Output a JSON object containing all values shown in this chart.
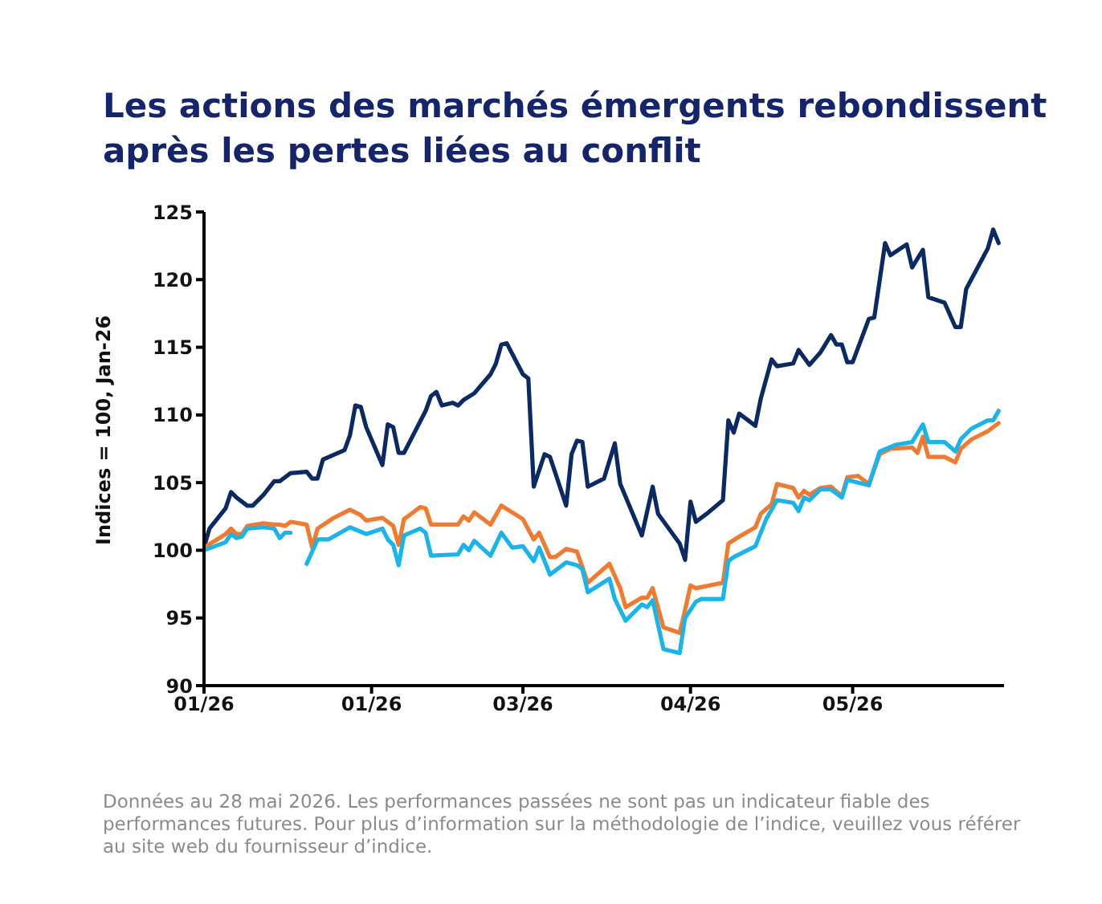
{
  "chart_data": {
    "type": "line",
    "title": "Les actions des marchés émergents rebondissent après les pertes liées au conflit",
    "ylabel": "Indices = 100, Jan-26",
    "xlim": [
      "2026-01-01",
      "2026-05-29"
    ],
    "xticks": [
      {
        "value": "2026-01-01",
        "label": "01/26"
      },
      {
        "value": "2026-02-01",
        "label": "01/26"
      },
      {
        "value": "2026-03-01",
        "label": "03/26"
      },
      {
        "value": "2026-04-01",
        "label": "04/26"
      },
      {
        "value": "2026-05-01",
        "label": "05/26"
      }
    ],
    "ylim": [
      90,
      125
    ],
    "yticks": [
      90,
      95,
      100,
      105,
      110,
      115,
      120,
      125
    ],
    "grid": false,
    "marker": "none",
    "line_style": "solid",
    "series": [
      {
        "color": "#0b2a63",
        "x": [
          "2026-01-01",
          "2026-01-02",
          "2026-01-05",
          "2026-01-06",
          "2026-01-07",
          "2026-01-09",
          "2026-01-10",
          "2026-01-12",
          "2026-01-14",
          "2026-01-15",
          "2026-01-17",
          "2026-01-20",
          "2026-01-21",
          "2026-01-22",
          "2026-01-23",
          "2026-01-27",
          "2026-01-28",
          "2026-01-29",
          "2026-01-30",
          "2026-01-31",
          "2026-02-03",
          "2026-02-04",
          "2026-02-05",
          "2026-02-06",
          "2026-02-07",
          "2026-02-11",
          "2026-02-12",
          "2026-02-13",
          "2026-02-14",
          "2026-02-16",
          "2026-02-17",
          "2026-02-18",
          "2026-02-20",
          "2026-02-23",
          "2026-02-24",
          "2026-02-25",
          "2026-02-26",
          "2026-03-01",
          "2026-03-02",
          "2026-03-03",
          "2026-03-05",
          "2026-03-06",
          "2026-03-09",
          "2026-03-10",
          "2026-03-11",
          "2026-03-12",
          "2026-03-13",
          "2026-03-16",
          "2026-03-18",
          "2026-03-19",
          "2026-03-23",
          "2026-03-25",
          "2026-03-26",
          "2026-03-30",
          "2026-03-31",
          "2026-04-01",
          "2026-04-02",
          "2026-04-04",
          "2026-04-07",
          "2026-04-08",
          "2026-04-09",
          "2026-04-10",
          "2026-04-13",
          "2026-04-14",
          "2026-04-16",
          "2026-04-17",
          "2026-04-20",
          "2026-04-21",
          "2026-04-23",
          "2026-04-25",
          "2026-04-27",
          "2026-04-28",
          "2026-04-29",
          "2026-04-30",
          "2026-05-01",
          "2026-05-04",
          "2026-05-05",
          "2026-05-07",
          "2026-05-08",
          "2026-05-11",
          "2026-05-12",
          "2026-05-14",
          "2026-05-15",
          "2026-05-18",
          "2026-05-20",
          "2026-05-21",
          "2026-05-22",
          "2026-05-26",
          "2026-05-27",
          "2026-05-28"
        ],
        "values": [
          100.2,
          101.6,
          103.1,
          104.3,
          103.9,
          103.3,
          103.3,
          104.1,
          105.1,
          105.1,
          105.7,
          105.8,
          105.3,
          105.3,
          106.7,
          107.4,
          108.5,
          110.7,
          110.6,
          109.1,
          106.3,
          109.3,
          109.1,
          107.2,
          107.2,
          110.3,
          111.4,
          111.7,
          110.7,
          110.9,
          110.7,
          111.1,
          111.6,
          113.0,
          113.8,
          115.2,
          115.3,
          113.0,
          112.7,
          104.7,
          107.1,
          106.9,
          103.3,
          107.1,
          108.1,
          108.0,
          104.7,
          105.3,
          107.9,
          104.9,
          101.1,
          104.7,
          102.7,
          100.5,
          99.3,
          103.6,
          102.1,
          102.7,
          103.7,
          109.6,
          108.7,
          110.1,
          109.2,
          111.2,
          114.1,
          113.6,
          113.8,
          114.8,
          113.7,
          114.6,
          115.9,
          115.2,
          115.2,
          113.9,
          113.9,
          117.1,
          117.2,
          122.7,
          121.8,
          122.6,
          120.9,
          122.2,
          118.7,
          118.3,
          116.5,
          116.5,
          119.3,
          122.3,
          123.7,
          122.7
        ]
      },
      {
        "color": "#f07a30",
        "x": [
          "2026-01-01",
          "2026-01-05",
          "2026-01-06",
          "2026-01-07",
          "2026-01-08",
          "2026-01-09",
          "2026-01-12",
          "2026-01-14",
          "2026-01-15",
          "2026-01-16",
          "2026-01-17",
          "2026-01-20",
          "2026-01-21",
          "2026-01-22",
          "2026-01-25",
          "2026-01-28",
          "2026-01-30",
          "2026-01-31",
          "2026-02-03",
          "2026-02-05",
          "2026-02-06",
          "2026-02-07",
          "2026-02-10",
          "2026-02-11",
          "2026-02-12",
          "2026-02-17",
          "2026-02-18",
          "2026-02-19",
          "2026-02-20",
          "2026-02-23",
          "2026-02-25",
          "2026-03-01",
          "2026-03-03",
          "2026-03-04",
          "2026-03-06",
          "2026-03-07",
          "2026-03-09",
          "2026-03-11",
          "2026-03-13",
          "2026-03-17",
          "2026-03-19",
          "2026-03-20",
          "2026-03-23",
          "2026-03-24",
          "2026-03-25",
          "2026-03-27",
          "2026-03-30",
          "2026-03-31",
          "2026-04-01",
          "2026-04-02",
          "2026-04-07",
          "2026-04-08",
          "2026-04-10",
          "2026-04-13",
          "2026-04-14",
          "2026-04-16",
          "2026-04-17",
          "2026-04-20",
          "2026-04-21",
          "2026-04-22",
          "2026-04-23",
          "2026-04-25",
          "2026-04-27",
          "2026-04-29",
          "2026-04-30",
          "2026-05-02",
          "2026-05-04",
          "2026-05-06",
          "2026-05-08",
          "2026-05-12",
          "2026-05-13",
          "2026-05-14",
          "2026-05-15",
          "2026-05-18",
          "2026-05-20",
          "2026-05-21",
          "2026-05-23",
          "2026-05-26",
          "2026-05-27",
          "2026-05-28"
        ],
        "values": [
          100.2,
          101.2,
          101.6,
          101.2,
          101.2,
          101.8,
          102.0,
          101.9,
          101.9,
          101.8,
          102.1,
          101.9,
          100.2,
          101.6,
          102.4,
          103.0,
          102.6,
          102.2,
          102.4,
          101.8,
          100.4,
          102.3,
          103.2,
          103.1,
          101.9,
          101.9,
          102.5,
          102.2,
          102.8,
          101.9,
          103.3,
          102.3,
          100.8,
          101.3,
          99.5,
          99.5,
          100.1,
          99.9,
          97.6,
          99.0,
          97.2,
          95.8,
          96.5,
          96.5,
          97.2,
          94.3,
          93.9,
          95.6,
          97.4,
          97.2,
          97.6,
          100.5,
          101.0,
          101.7,
          102.7,
          103.4,
          104.9,
          104.6,
          103.9,
          104.4,
          104.1,
          104.6,
          104.7,
          104.0,
          105.4,
          105.5,
          104.9,
          107.1,
          107.5,
          107.6,
          107.2,
          108.4,
          106.9,
          106.9,
          106.5,
          107.5,
          108.2,
          108.8,
          109.1,
          109.4
        ]
      },
      {
        "color": "#1ab3ea",
        "x": [
          "2026-01-01",
          "2026-01-03",
          "2026-01-05",
          "2026-01-06",
          "2026-01-07",
          "2026-01-08",
          "2026-01-09",
          "2026-01-12",
          "2026-01-14",
          "2026-01-15",
          "2026-01-16",
          "2026-01-17",
          "2026-01-18",
          "2026-01-20",
          "2026-01-22",
          "2026-01-24",
          "2026-01-28",
          "2026-01-31",
          "2026-02-03",
          "2026-02-04",
          "2026-02-05",
          "2026-02-06",
          "2026-02-07",
          "2026-02-10",
          "2026-02-11",
          "2026-02-12",
          "2026-02-17",
          "2026-02-18",
          "2026-02-19",
          "2026-02-20",
          "2026-02-23",
          "2026-02-25",
          "2026-02-27",
          "2026-03-01",
          "2026-03-03",
          "2026-03-04",
          "2026-03-06",
          "2026-03-09",
          "2026-03-11",
          "2026-03-12",
          "2026-03-13",
          "2026-03-17",
          "2026-03-18",
          "2026-03-20",
          "2026-03-23",
          "2026-03-24",
          "2026-03-25",
          "2026-03-27",
          "2026-03-30",
          "2026-03-31",
          "2026-04-02",
          "2026-04-03",
          "2026-04-07",
          "2026-04-08",
          "2026-04-09",
          "2026-04-13",
          "2026-04-15",
          "2026-04-17",
          "2026-04-20",
          "2026-04-21",
          "2026-04-22",
          "2026-04-23",
          "2026-04-25",
          "2026-04-27",
          "2026-04-29",
          "2026-04-30",
          "2026-05-04",
          "2026-05-06",
          "2026-05-09",
          "2026-05-12",
          "2026-05-14",
          "2026-05-15",
          "2026-05-18",
          "2026-05-20",
          "2026-05-21",
          "2026-05-23",
          "2026-05-26",
          "2026-05-27",
          "2026-05-28"
        ],
        "values": [
          100.0,
          100.3,
          100.6,
          101.2,
          100.9,
          101.0,
          101.6,
          101.7,
          101.6,
          100.9,
          101.3,
          101.3,
          null,
          99.0,
          100.8,
          100.8,
          101.7,
          101.2,
          101.6,
          100.8,
          100.4,
          98.9,
          101.1,
          101.6,
          101.3,
          99.6,
          99.7,
          100.4,
          100.0,
          100.7,
          99.6,
          101.3,
          100.2,
          100.3,
          99.2,
          100.2,
          98.2,
          99.1,
          98.9,
          98.6,
          96.9,
          97.9,
          96.4,
          94.8,
          96.0,
          95.8,
          96.3,
          92.7,
          92.4,
          95.0,
          96.2,
          96.4,
          96.4,
          99.2,
          99.5,
          100.3,
          102.3,
          103.7,
          103.5,
          102.9,
          103.9,
          103.7,
          104.5,
          104.5,
          103.9,
          105.2,
          104.8,
          107.3,
          107.8,
          108.0,
          109.3,
          108.0,
          108.0,
          107.3,
          108.2,
          109.0,
          109.6,
          109.6,
          110.3
        ]
      }
    ],
    "annotations": [
      "Données au 28 mai 2026. Les performances passées ne sont pas un indicateur fiable des performances futures. Pour plus d’information sur la méthodologie de l’indice, veuillez vous référer au site web du fournisseur d’indice."
    ]
  }
}
